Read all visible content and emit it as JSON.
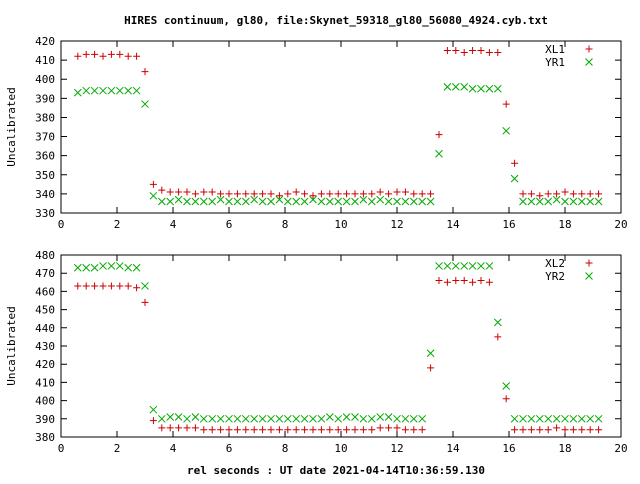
{
  "chart_data": {
    "title": "HIRES continuum, gl80, file:Skynet_59318_gl80_56080_4924.cyb.txt",
    "xlabel": "rel seconds : UT date 2021-04-14T10:36:59.130",
    "panels": [
      {
        "type": "scatter",
        "ylabel": "Uncalibrated",
        "xlim": [
          0,
          20
        ],
        "ylim": [
          330,
          420
        ],
        "xticks": [
          0,
          2,
          4,
          6,
          8,
          10,
          12,
          14,
          16,
          18,
          20
        ],
        "yticks": [
          330,
          340,
          350,
          360,
          370,
          380,
          390,
          400,
          410,
          420
        ],
        "legend_position": "top-right",
        "series": [
          {
            "name": "XL1",
            "marker": "+",
            "color": "#cc0000",
            "x": [
              0.6,
              0.9,
              1.2,
              1.5,
              1.8,
              2.1,
              2.4,
              2.7,
              3.0,
              3.3,
              3.6,
              3.9,
              4.2,
              4.5,
              4.8,
              5.1,
              5.4,
              5.7,
              6.0,
              6.3,
              6.6,
              6.9,
              7.2,
              7.5,
              7.8,
              8.1,
              8.4,
              8.7,
              9.0,
              9.3,
              9.6,
              9.9,
              10.2,
              10.5,
              10.8,
              11.1,
              11.4,
              11.7,
              12.0,
              12.3,
              12.6,
              12.9,
              13.2,
              13.5,
              13.8,
              14.1,
              14.4,
              14.7,
              15.0,
              15.3,
              15.6,
              15.9,
              16.2,
              16.5,
              16.8,
              17.1,
              17.4,
              17.7,
              18.0,
              18.3,
              18.6,
              18.9,
              19.2
            ],
            "y": [
              412,
              413,
              413,
              412,
              413,
              413,
              412,
              412,
              404,
              345,
              342,
              341,
              341,
              341,
              340,
              341,
              341,
              340,
              340,
              340,
              340,
              340,
              340,
              340,
              339,
              340,
              341,
              340,
              339,
              340,
              340,
              340,
              340,
              340,
              340,
              340,
              341,
              340,
              341,
              341,
              340,
              340,
              340,
              371,
              415,
              415,
              414,
              415,
              415,
              414,
              414,
              387,
              356,
              340,
              340,
              339,
              340,
              340,
              341,
              340,
              340,
              340,
              340
            ]
          },
          {
            "name": "YR1",
            "marker": "x",
            "color": "#00aa00",
            "x": [
              0.6,
              0.9,
              1.2,
              1.5,
              1.8,
              2.1,
              2.4,
              2.7,
              3.0,
              3.3,
              3.6,
              3.9,
              4.2,
              4.5,
              4.8,
              5.1,
              5.4,
              5.7,
              6.0,
              6.3,
              6.6,
              6.9,
              7.2,
              7.5,
              7.8,
              8.1,
              8.4,
              8.7,
              9.0,
              9.3,
              9.6,
              9.9,
              10.2,
              10.5,
              10.8,
              11.1,
              11.4,
              11.7,
              12.0,
              12.3,
              12.6,
              12.9,
              13.2,
              13.5,
              13.8,
              14.1,
              14.4,
              14.7,
              15.0,
              15.3,
              15.6,
              15.9,
              16.2,
              16.5,
              16.8,
              17.1,
              17.4,
              17.7,
              18.0,
              18.3,
              18.6,
              18.9,
              19.2
            ],
            "y": [
              393,
              394,
              394,
              394,
              394,
              394,
              394,
              394,
              387,
              339,
              336,
              336,
              337,
              336,
              336,
              336,
              336,
              337,
              336,
              336,
              336,
              337,
              336,
              336,
              337,
              336,
              336,
              336,
              337,
              336,
              336,
              336,
              336,
              336,
              337,
              336,
              337,
              336,
              336,
              336,
              336,
              336,
              336,
              361,
              396,
              396,
              396,
              395,
              395,
              395,
              395,
              373,
              348,
              336,
              336,
              336,
              336,
              337,
              336,
              336,
              336,
              336,
              336
            ]
          }
        ]
      },
      {
        "type": "scatter",
        "ylabel": "Uncalibrated",
        "xlim": [
          0,
          20
        ],
        "ylim": [
          380,
          480
        ],
        "xticks": [
          0,
          2,
          4,
          6,
          8,
          10,
          12,
          14,
          16,
          18,
          20
        ],
        "yticks": [
          380,
          390,
          400,
          410,
          420,
          430,
          440,
          450,
          460,
          470,
          480
        ],
        "legend_position": "top-right",
        "series": [
          {
            "name": "XL2",
            "marker": "+",
            "color": "#cc0000",
            "x": [
              0.6,
              0.9,
              1.2,
              1.5,
              1.8,
              2.1,
              2.4,
              2.7,
              3.0,
              3.3,
              3.6,
              3.9,
              4.2,
              4.5,
              4.8,
              5.1,
              5.4,
              5.7,
              6.0,
              6.3,
              6.6,
              6.9,
              7.2,
              7.5,
              7.8,
              8.1,
              8.4,
              8.7,
              9.0,
              9.3,
              9.6,
              9.9,
              10.2,
              10.5,
              10.8,
              11.1,
              11.4,
              11.7,
              12.0,
              12.3,
              12.6,
              12.9,
              13.2,
              13.5,
              13.8,
              14.1,
              14.4,
              14.7,
              15.0,
              15.3,
              15.6,
              15.9,
              16.2,
              16.5,
              16.8,
              17.1,
              17.4,
              17.7,
              18.0,
              18.3,
              18.6,
              18.9,
              19.2
            ],
            "y": [
              463,
              463,
              463,
              463,
              463,
              463,
              463,
              462,
              454,
              389,
              385,
              385,
              385,
              385,
              385,
              384,
              384,
              384,
              384,
              384,
              384,
              384,
              384,
              384,
              384,
              384,
              384,
              384,
              384,
              384,
              384,
              384,
              384,
              384,
              384,
              384,
              385,
              385,
              385,
              384,
              384,
              384,
              418,
              466,
              465,
              466,
              466,
              465,
              466,
              465,
              435,
              401,
              384,
              384,
              384,
              384,
              384,
              385,
              384,
              384,
              384,
              384,
              384
            ]
          },
          {
            "name": "YR2",
            "marker": "x",
            "color": "#00aa00",
            "x": [
              0.6,
              0.9,
              1.2,
              1.5,
              1.8,
              2.1,
              2.4,
              2.7,
              3.0,
              3.3,
              3.6,
              3.9,
              4.2,
              4.5,
              4.8,
              5.1,
              5.4,
              5.7,
              6.0,
              6.3,
              6.6,
              6.9,
              7.2,
              7.5,
              7.8,
              8.1,
              8.4,
              8.7,
              9.0,
              9.3,
              9.6,
              9.9,
              10.2,
              10.5,
              10.8,
              11.1,
              11.4,
              11.7,
              12.0,
              12.3,
              12.6,
              12.9,
              13.2,
              13.5,
              13.8,
              14.1,
              14.4,
              14.7,
              15.0,
              15.3,
              15.6,
              15.9,
              16.2,
              16.5,
              16.8,
              17.1,
              17.4,
              17.7,
              18.0,
              18.3,
              18.6,
              18.9,
              19.2
            ],
            "y": [
              473,
              473,
              473,
              474,
              474,
              474,
              473,
              473,
              463,
              395,
              390,
              391,
              391,
              390,
              391,
              390,
              390,
              390,
              390,
              390,
              390,
              390,
              390,
              390,
              390,
              390,
              390,
              390,
              390,
              390,
              391,
              390,
              391,
              391,
              390,
              390,
              391,
              391,
              390,
              390,
              390,
              390,
              426,
              474,
              474,
              474,
              474,
              474,
              474,
              474,
              443,
              408,
              390,
              390,
              390,
              390,
              390,
              390,
              390,
              390,
              390,
              390,
              390
            ]
          }
        ]
      }
    ]
  }
}
